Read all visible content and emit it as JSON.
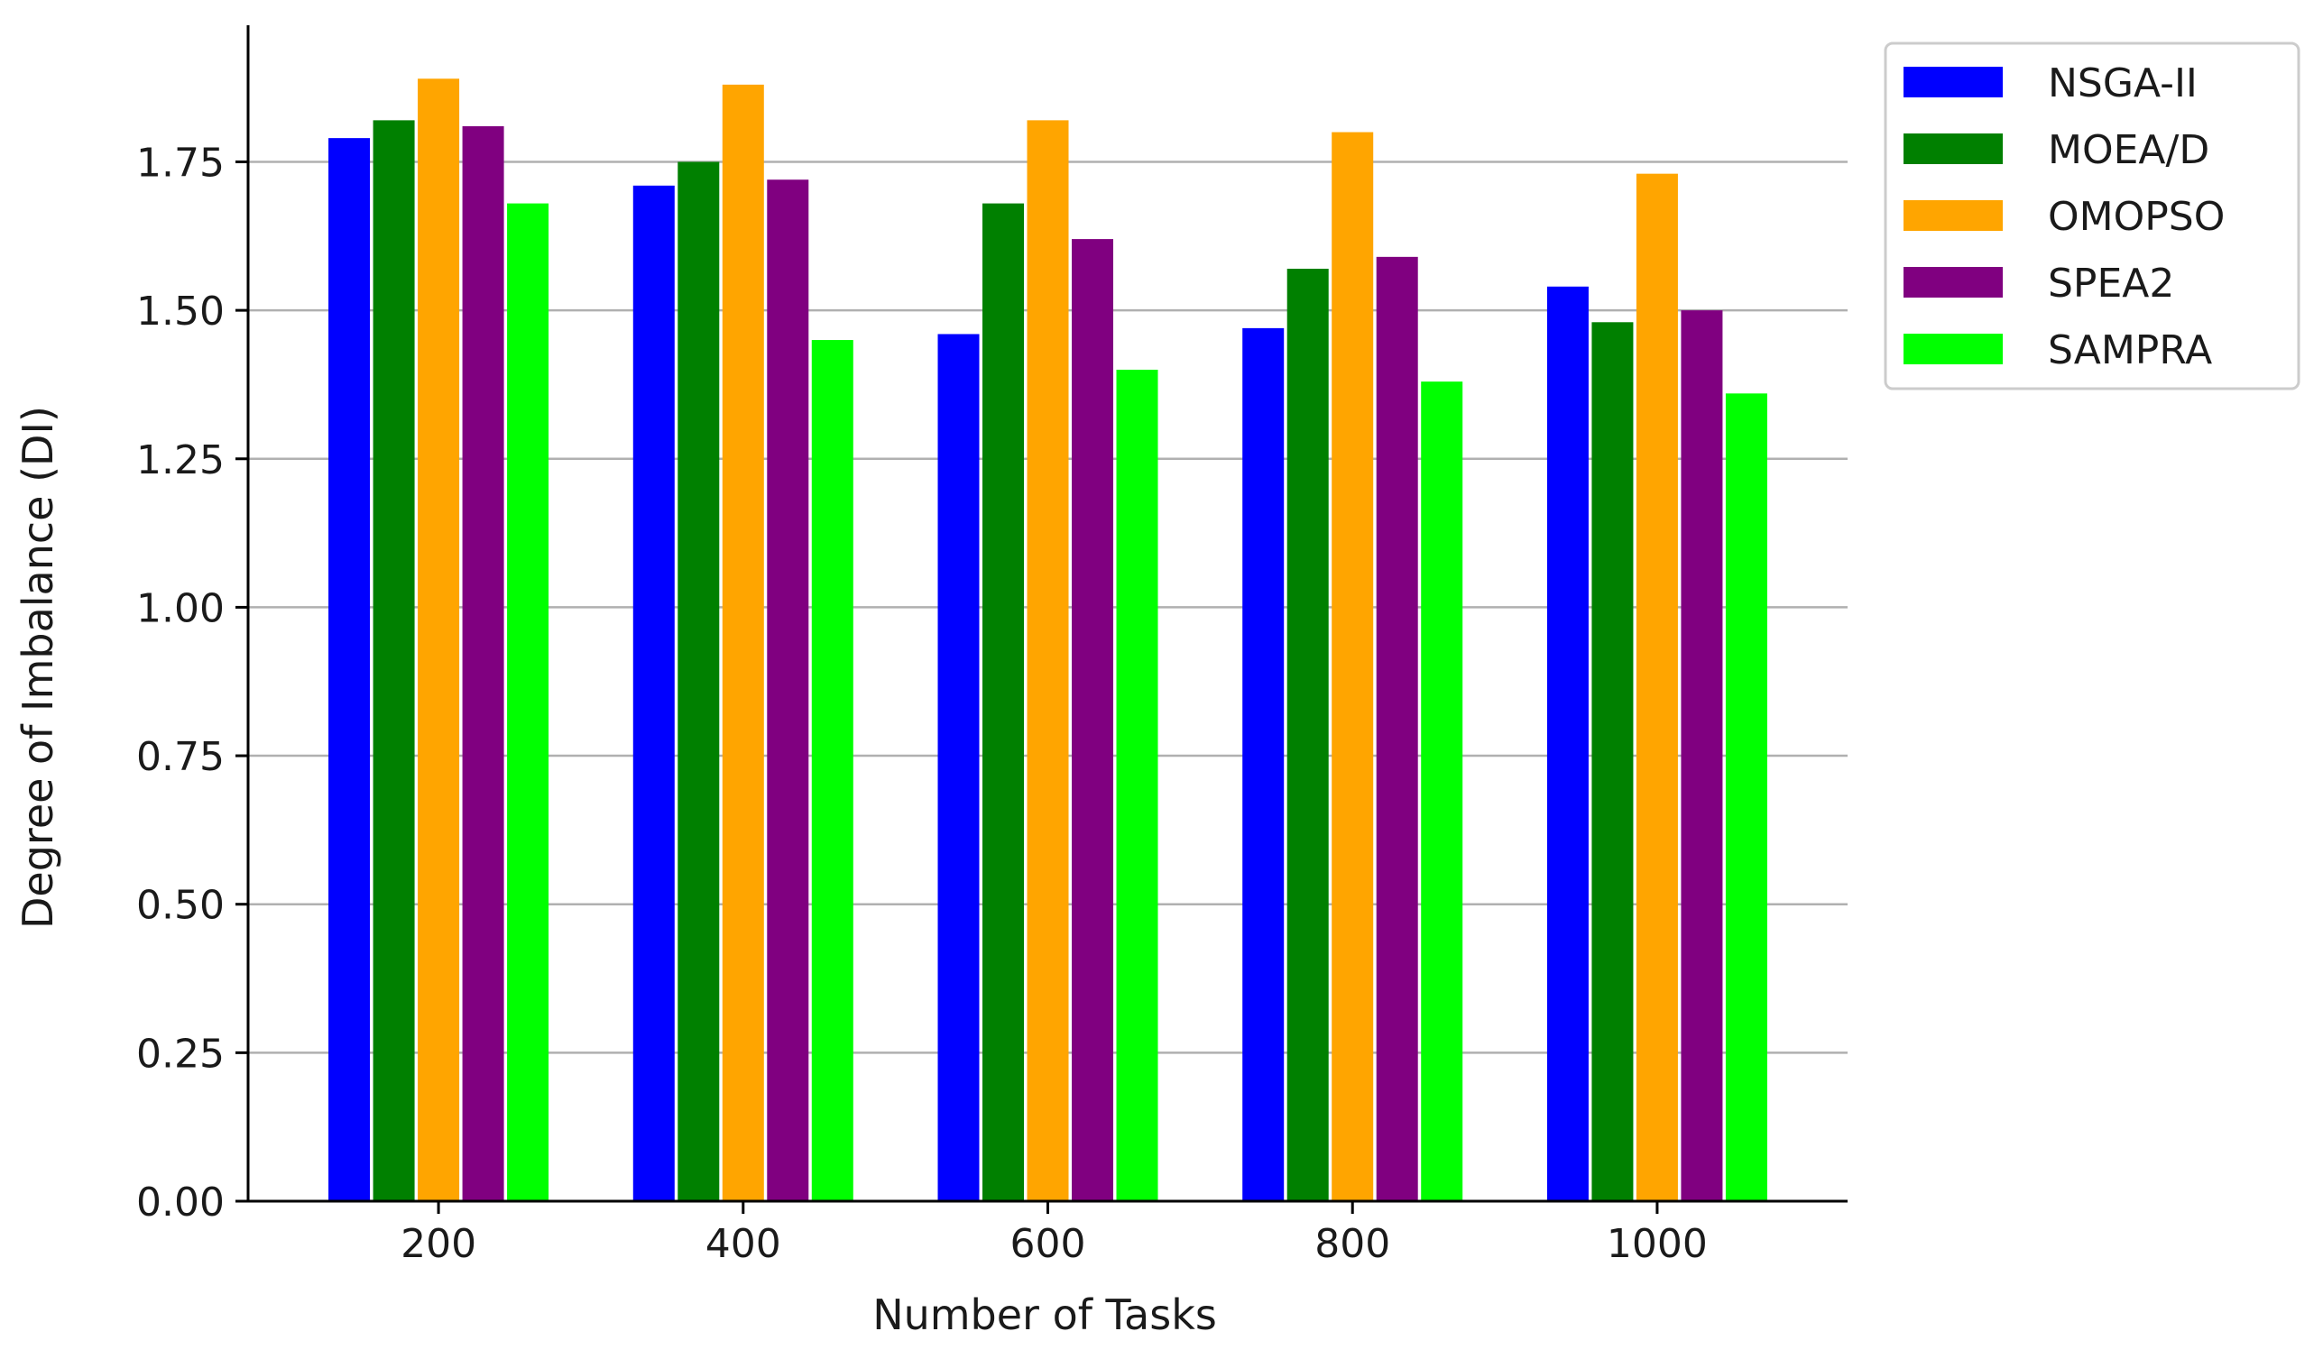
{
  "chart_data": {
    "type": "bar",
    "title": "",
    "xlabel": "Number of Tasks",
    "ylabel": "Degree of Imbalance (DI)",
    "categories": [
      "200",
      "400",
      "600",
      "800",
      "1000"
    ],
    "ylim": [
      0,
      1.98
    ],
    "yticks": [
      "0.00",
      "0.25",
      "0.50",
      "0.75",
      "1.00",
      "1.25",
      "1.50",
      "1.75"
    ],
    "grid": "horizontal",
    "legend_position": "top-right",
    "series": [
      {
        "name": "NSGA-II",
        "color": "#0000ff",
        "values": [
          1.79,
          1.71,
          1.46,
          1.47,
          1.54
        ]
      },
      {
        "name": "MOEA/D",
        "color": "#008000",
        "values": [
          1.82,
          1.75,
          1.68,
          1.57,
          1.48
        ]
      },
      {
        "name": "OMOPSO",
        "color": "#ffa500",
        "values": [
          1.89,
          1.88,
          1.82,
          1.8,
          1.73
        ]
      },
      {
        "name": "SPEA2",
        "color": "#800080",
        "values": [
          1.81,
          1.72,
          1.62,
          1.59,
          1.5
        ]
      },
      {
        "name": "SAMPRA",
        "color": "#00ff00",
        "values": [
          1.68,
          1.45,
          1.4,
          1.38,
          1.36
        ]
      }
    ]
  }
}
